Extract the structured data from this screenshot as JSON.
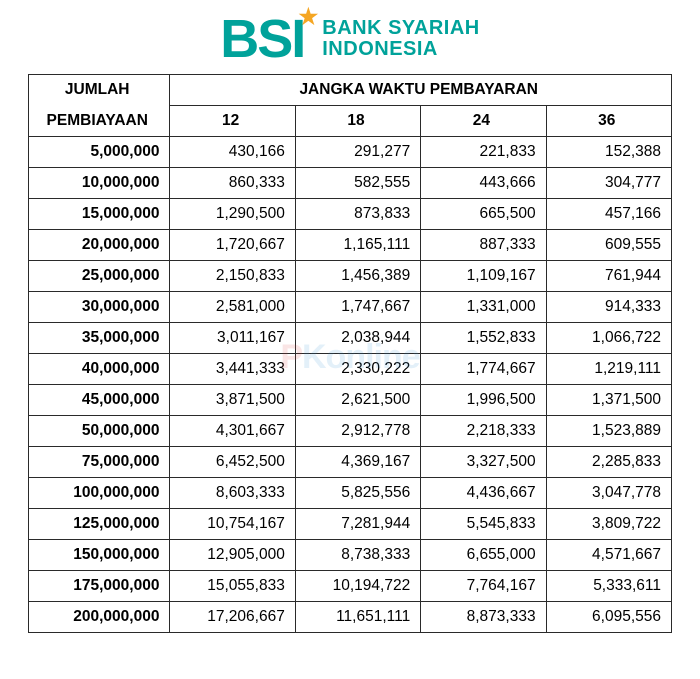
{
  "logo": {
    "mark": "BSI",
    "line1": "BANK SYARIAH",
    "line2": "INDONESIA",
    "brand_color": "#00a29a",
    "star_color": "#f5a623"
  },
  "watermark": {
    "pre": "P",
    "rest": "Konline"
  },
  "table": {
    "header": {
      "amount_top": "JUMLAH",
      "amount_bottom": "PEMBIAYAAN",
      "period_span": "JANGKA WAKTU PEMBAYARAN",
      "periods": [
        "12",
        "18",
        "24",
        "36"
      ]
    },
    "columns": [
      {
        "key": "amount",
        "align": "right",
        "bold": true
      },
      {
        "key": "p12",
        "align": "right",
        "bold": false
      },
      {
        "key": "p18",
        "align": "right",
        "bold": false
      },
      {
        "key": "p24",
        "align": "right",
        "bold": false
      },
      {
        "key": "p36",
        "align": "right",
        "bold": false
      }
    ],
    "rows": [
      {
        "amount": "5,000,000",
        "p12": "430,166",
        "p18": "291,277",
        "p24": "221,833",
        "p36": "152,388"
      },
      {
        "amount": "10,000,000",
        "p12": "860,333",
        "p18": "582,555",
        "p24": "443,666",
        "p36": "304,777"
      },
      {
        "amount": "15,000,000",
        "p12": "1,290,500",
        "p18": "873,833",
        "p24": "665,500",
        "p36": "457,166"
      },
      {
        "amount": "20,000,000",
        "p12": "1,720,667",
        "p18": "1,165,111",
        "p24": "887,333",
        "p36": "609,555"
      },
      {
        "amount": "25,000,000",
        "p12": "2,150,833",
        "p18": "1,456,389",
        "p24": "1,109,167",
        "p36": "761,944"
      },
      {
        "amount": "30,000,000",
        "p12": "2,581,000",
        "p18": "1,747,667",
        "p24": "1,331,000",
        "p36": "914,333"
      },
      {
        "amount": "35,000,000",
        "p12": "3,011,167",
        "p18": "2,038,944",
        "p24": "1,552,833",
        "p36": "1,066,722"
      },
      {
        "amount": "40,000,000",
        "p12": "3,441,333",
        "p18": "2,330,222",
        "p24": "1,774,667",
        "p36": "1,219,111"
      },
      {
        "amount": "45,000,000",
        "p12": "3,871,500",
        "p18": "2,621,500",
        "p24": "1,996,500",
        "p36": "1,371,500"
      },
      {
        "amount": "50,000,000",
        "p12": "4,301,667",
        "p18": "2,912,778",
        "p24": "2,218,333",
        "p36": "1,523,889"
      },
      {
        "amount": "75,000,000",
        "p12": "6,452,500",
        "p18": "4,369,167",
        "p24": "3,327,500",
        "p36": "2,285,833"
      },
      {
        "amount": "100,000,000",
        "p12": "8,603,333",
        "p18": "5,825,556",
        "p24": "4,436,667",
        "p36": "3,047,778"
      },
      {
        "amount": "125,000,000",
        "p12": "10,754,167",
        "p18": "7,281,944",
        "p24": "5,545,833",
        "p36": "3,809,722"
      },
      {
        "amount": "150,000,000",
        "p12": "12,905,000",
        "p18": "8,738,333",
        "p24": "6,655,000",
        "p36": "4,571,667"
      },
      {
        "amount": "175,000,000",
        "p12": "15,055,833",
        "p18": "10,194,722",
        "p24": "7,764,167",
        "p36": "5,333,611"
      },
      {
        "amount": "200,000,000",
        "p12": "17,206,667",
        "p18": "11,651,111",
        "p24": "8,873,333",
        "p36": "6,095,556"
      }
    ],
    "border_color": "#2a2a2a",
    "background_color": "#ffffff",
    "font_family": "Arial",
    "cell_fontsize": 15.5,
    "header_fontsize": 15.5
  }
}
